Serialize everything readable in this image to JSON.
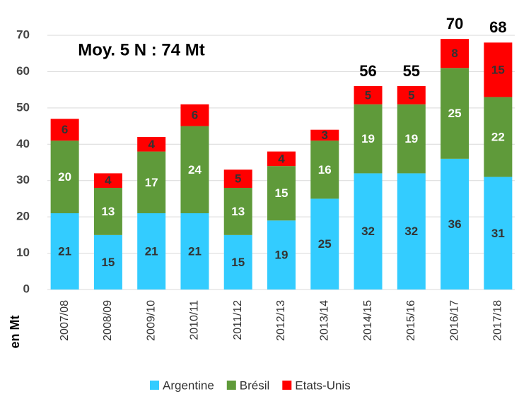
{
  "chart_data": {
    "type": "stacked_bar",
    "annotation": "Moy. 5 N : 74 Mt",
    "ylabel": "en Mt",
    "categories": [
      "2007/08",
      "2008/09",
      "2009/10",
      "2010/11",
      "2011/12",
      "2012/13",
      "2013/14",
      "2014/15",
      "2015/16",
      "2016/17",
      "2017/18"
    ],
    "series": [
      {
        "name": "Argentine",
        "color": "#33ccff",
        "label_color": "#333333",
        "values": [
          21,
          15,
          21,
          21,
          15,
          19,
          25,
          32,
          32,
          36,
          31
        ]
      },
      {
        "name": "Brésil",
        "color": "#5f9a3a",
        "label_color": "#ffffff",
        "values": [
          20,
          13,
          17,
          24,
          13,
          15,
          16,
          19,
          19,
          25,
          22
        ]
      },
      {
        "name": "Etats-Unis",
        "color": "#ff0000",
        "label_color": "#333333",
        "values": [
          6,
          4,
          4,
          6,
          5,
          4,
          3,
          5,
          5,
          8,
          15
        ]
      }
    ],
    "totals": [
      null,
      null,
      null,
      null,
      null,
      null,
      null,
      56,
      55,
      70,
      68
    ],
    "ylim": [
      0,
      70
    ],
    "yticks": [
      0,
      10,
      20,
      30,
      40,
      50,
      60,
      70
    ],
    "grid": true
  }
}
